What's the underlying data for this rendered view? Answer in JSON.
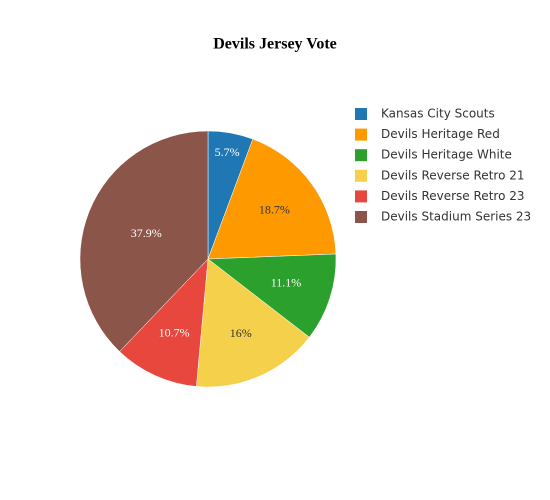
{
  "chart_data": {
    "type": "pie",
    "title": "Devils Jersey Vote",
    "categories": [
      "Kansas City Scouts",
      "Devils Heritage Red",
      "Devils Heritage White",
      "Devils Reverse Retro 21",
      "Devils Reverse Retro 23",
      "Devils Stadium Series 23"
    ],
    "values": [
      5.7,
      18.7,
      11.1,
      16,
      10.7,
      37.9
    ],
    "value_labels": [
      "5.7%",
      "18.7%",
      "11.1%",
      "16%",
      "10.7%",
      "37.9%"
    ],
    "colors": [
      "#1f77b4",
      "#ff9900",
      "#2ca02c",
      "#f5d04a",
      "#e8473d",
      "#8c5549"
    ],
    "legend": "right"
  }
}
